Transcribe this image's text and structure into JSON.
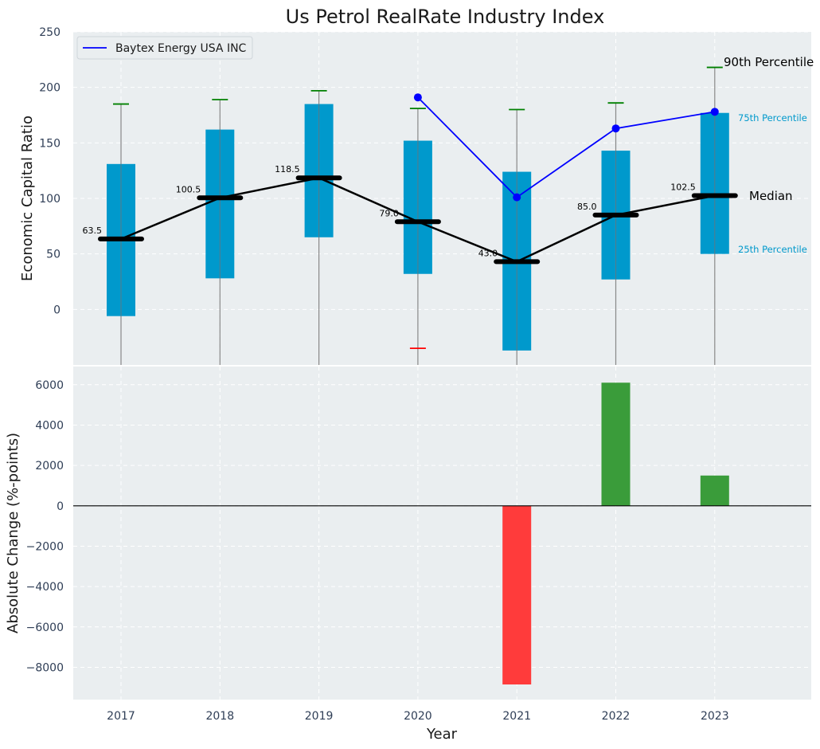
{
  "chart_data": [
    {
      "type": "box",
      "title": "Us Petrol RealRate Industry Index",
      "ylabel": "Economic Capital Ratio",
      "ylim": [
        -50,
        250
      ],
      "yticks": [
        0,
        50,
        100,
        150,
        200,
        250
      ],
      "categories": [
        "2017",
        "2018",
        "2019",
        "2020",
        "2021",
        "2022",
        "2023"
      ],
      "p10": [
        null,
        null,
        null,
        -35,
        null,
        null,
        null
      ],
      "p25": [
        -6,
        28,
        65,
        32,
        -37,
        27,
        50
      ],
      "median": [
        63.5,
        100.5,
        118.5,
        79.0,
        43.0,
        85.0,
        102.5
      ],
      "median_labels": [
        "63.5",
        "100.5",
        "118.5",
        "79.0",
        "43.0",
        "85.0",
        "102.5"
      ],
      "p75": [
        131,
        162,
        185,
        152,
        124,
        143,
        177
      ],
      "p90": [
        185,
        189,
        197,
        181,
        180,
        186,
        218
      ],
      "series": [
        {
          "name": "Baytex Energy USA INC",
          "values": [
            null,
            null,
            null,
            191,
            101,
            163,
            178
          ]
        }
      ],
      "legend_position": "top-left",
      "annotations": {
        "p90": "90th Percentile",
        "p75": "75th Percentile",
        "median": "Median",
        "p25": "25th Percentile"
      },
      "colors": {
        "box": "#0099cc",
        "median_line": "#000000",
        "series": "#0000ff",
        "p90_cap": "#008000",
        "p10_cap": "#ff0000",
        "whisker": "#888888"
      },
      "grid": true
    },
    {
      "type": "bar",
      "xlabel": "Year",
      "ylabel": "Absolute Change (%-points)",
      "ylim": [
        -9600,
        6900
      ],
      "yticks": [
        -8000,
        -6000,
        -4000,
        -2000,
        0,
        2000,
        4000,
        6000
      ],
      "categories": [
        "2017",
        "2018",
        "2019",
        "2020",
        "2021",
        "2022",
        "2023"
      ],
      "values": [
        null,
        null,
        null,
        null,
        -8850,
        6100,
        1500
      ],
      "colors": {
        "positive": "#3a9c3a",
        "negative": "#ff3b3b"
      },
      "grid": true
    }
  ]
}
